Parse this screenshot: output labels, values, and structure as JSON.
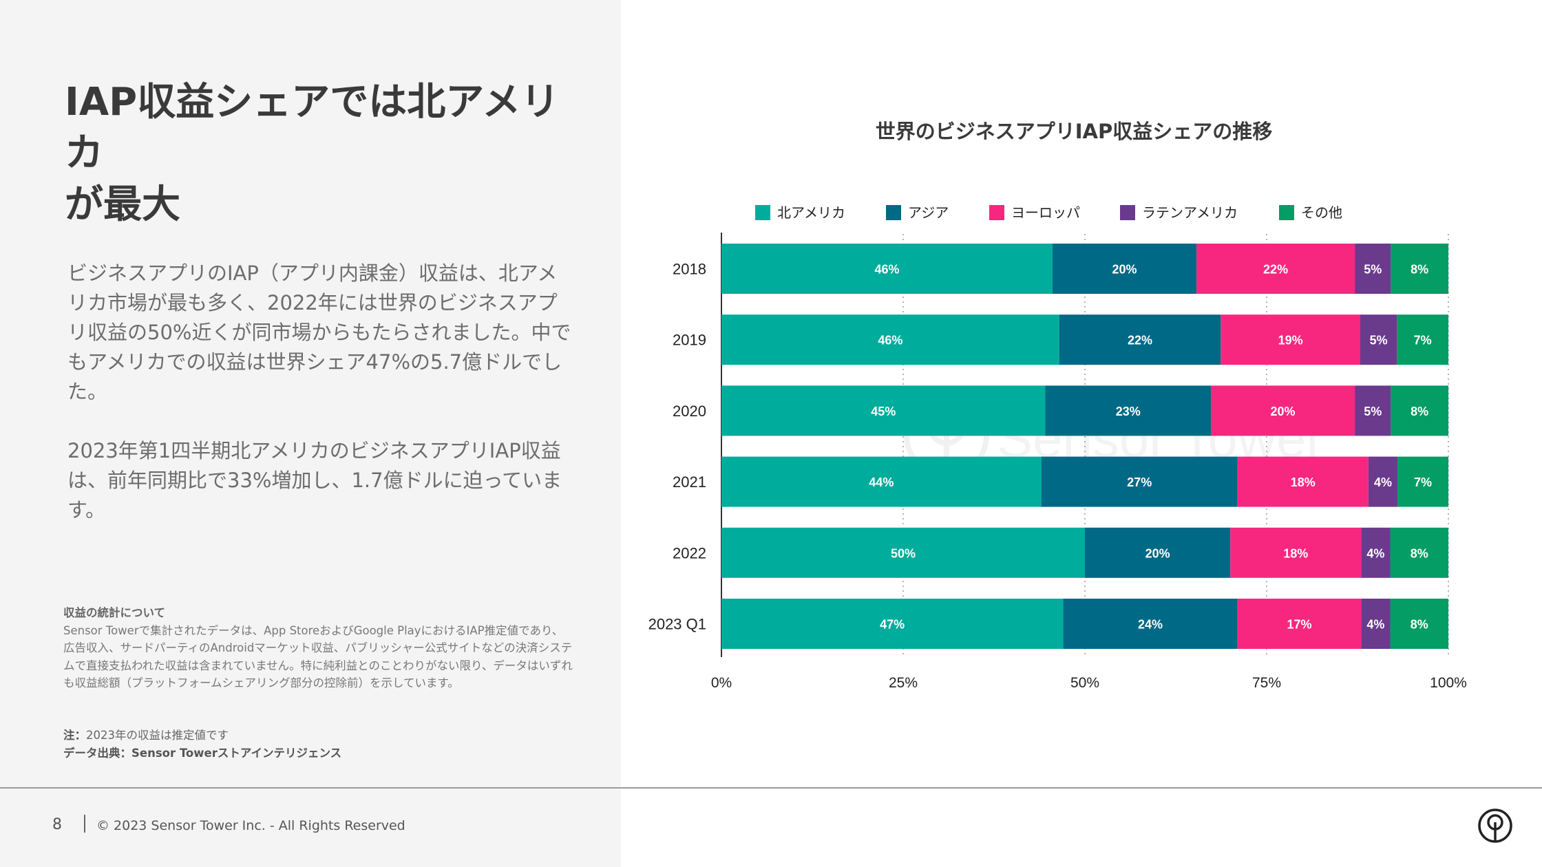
{
  "left": {
    "headline": "IAP収益シェアでは北アメリカ\nが最大",
    "paragraph1": "ビジネスアプリのIAP（アプリ内課金）収益は、北アメリカ市場が最も多く、2022年には世界のビジネスアプリ収益の50%近くが同市場からもたらされました。中でもアメリカでの収益は世界シェア47%の5.7億ドルでした。",
    "paragraph2": "2023年第1四半期北アメリカのビジネスアプリIAP収益は、前年同期比で33%増加し、1.7億ドルに迫っています。",
    "methodology_title": "収益の統計について",
    "methodology_body": "Sensor Towerで集計されたデータは、App StoreおよびGoogle PlayにおけるIAP推定値であり、広告収入、サードパーティのAndroidマーケット収益、パブリッシャー公式サイトなどの決済システムで直接支払われた収益は含まれていません。特に純利益とのことわりがない限り、データはいずれも収益総額（プラットフォームシェアリング部分の控除前）を示しています。",
    "note_label": "注：",
    "note_text": "2023年の収益は推定値です",
    "source_label": "データ出典：",
    "source_text": "Sensor Towerストアインテリジェンス"
  },
  "footer": {
    "page_number": "8",
    "copyright": "© 2023 Sensor Tower Inc. - All Rights Reserved",
    "logo_icon": "sensor-tower-logo-icon"
  },
  "watermark": {
    "text": "Sensor Tower"
  },
  "colors": {
    "teal": "#00AC9B",
    "dark_blue": "#006985",
    "pink": "#F7277F",
    "purple": "#6A3A8D",
    "green": "#039D65"
  },
  "chart_data": {
    "type": "bar",
    "orientation": "horizontal",
    "stacked": true,
    "title": "世界のビジネスアプリIAP収益シェアの推移",
    "categories": [
      "2018",
      "2019",
      "2020",
      "2021",
      "2022",
      "2023 Q1"
    ],
    "series": [
      {
        "name": "北アメリカ",
        "color": "#00AC9B",
        "values": [
          46,
          46,
          45,
          44,
          50,
          47
        ]
      },
      {
        "name": "アジア",
        "color": "#006985",
        "values": [
          20,
          22,
          23,
          27,
          20,
          24
        ]
      },
      {
        "name": "ヨーロッパ",
        "color": "#F7277F",
        "values": [
          22,
          19,
          20,
          18,
          18,
          17
        ]
      },
      {
        "name": "ラテンアメリカ",
        "color": "#6A3A8D",
        "values": [
          5,
          5,
          5,
          4,
          4,
          4
        ]
      },
      {
        "name": "その他",
        "color": "#039D65",
        "values": [
          8,
          7,
          8,
          7,
          8,
          8
        ]
      }
    ],
    "x_ticks": [
      "0%",
      "25%",
      "50%",
      "75%",
      "100%"
    ],
    "xlim": [
      0,
      100
    ],
    "value_suffix": "%",
    "grid": "vertical-dotted",
    "legend_position": "top"
  }
}
